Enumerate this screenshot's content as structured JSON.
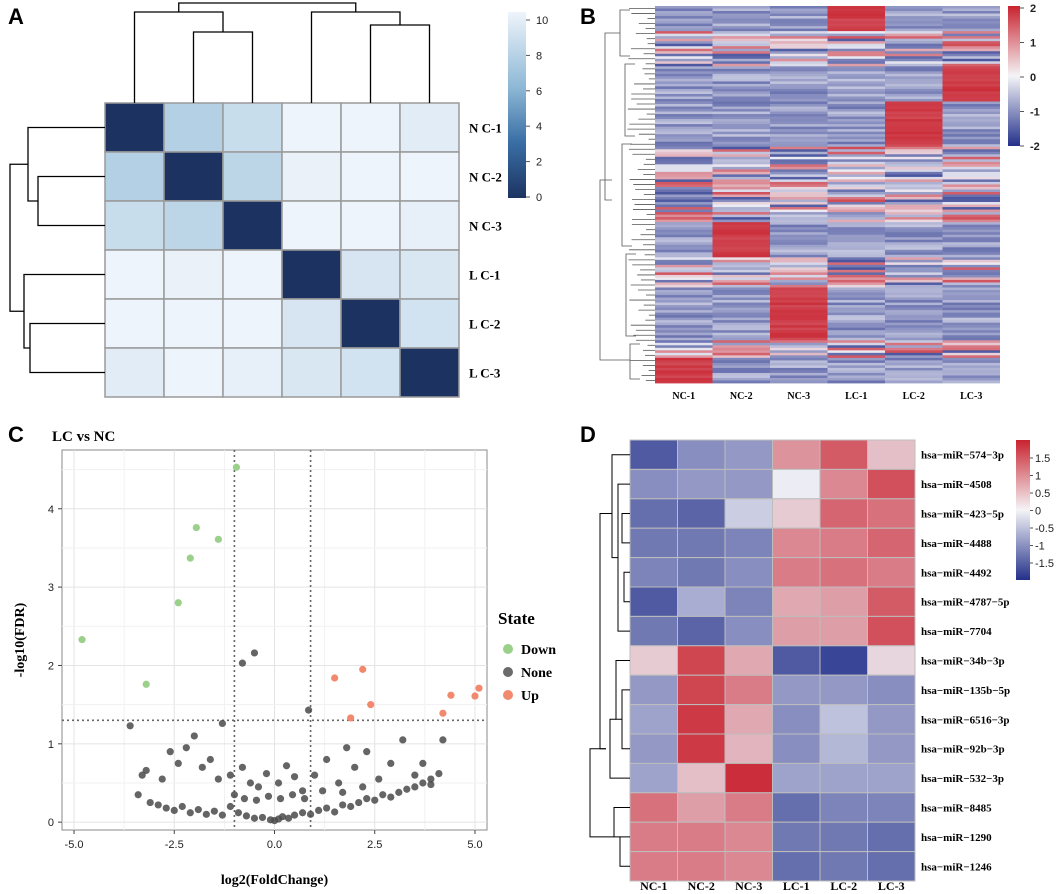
{
  "panels": {
    "a": "A",
    "b": "B",
    "c": "C",
    "d": "D"
  },
  "chart_data": [
    {
      "id": "A",
      "type": "heatmap",
      "title": "",
      "rows": [
        "N C-1",
        "N C-2",
        "N C-3",
        "L C-1",
        "L C-2",
        "L C-3"
      ],
      "values": [
        [
          0,
          7.5,
          8.3,
          10.2,
          10.1,
          9.4
        ],
        [
          7.5,
          0,
          7.8,
          9.8,
          10.2,
          10.0
        ],
        [
          8.3,
          7.8,
          0,
          10.3,
          10.2,
          9.7
        ],
        [
          10.2,
          9.8,
          10.3,
          0,
          8.9,
          9.0
        ],
        [
          10.1,
          10.2,
          10.2,
          8.9,
          0,
          8.7
        ],
        [
          9.4,
          10.0,
          9.7,
          9.0,
          8.7,
          0
        ]
      ],
      "colorbar": {
        "min": 0,
        "max": 10,
        "ticks": [
          "10",
          "8",
          "6",
          "4",
          "2",
          "0"
        ]
      }
    },
    {
      "id": "B",
      "type": "heatmap",
      "columns": [
        "NC-1",
        "NC-2",
        "NC-3",
        "LC-1",
        "LC-2",
        "LC-3"
      ],
      "colorbar": {
        "min": -2,
        "max": 2,
        "ticks": [
          "2",
          "1",
          "0",
          "-1",
          "-2"
        ]
      }
    },
    {
      "id": "C",
      "type": "scatter",
      "title": "LC vs  NC",
      "xlabel": "log2(FoldChange)",
      "ylabel": "-log10(FDR)",
      "xlim": [
        -5.3,
        5.3
      ],
      "ylim": [
        -0.1,
        4.75
      ],
      "xticks": [
        "-5.0",
        "-2.5",
        "0.0",
        "2.5",
        "5.0"
      ],
      "yticks": [
        "0",
        "1",
        "2",
        "3",
        "4"
      ],
      "vlines": [
        -1,
        0.9
      ],
      "hline": 1.3,
      "legend_title": "State",
      "legend": [
        {
          "label": "Down",
          "color": "#9bd08a"
        },
        {
          "label": "None",
          "color": "#6b6b6b"
        },
        {
          "label": "Up",
          "color": "#f2896f"
        }
      ],
      "series": [
        {
          "name": "Down",
          "points": [
            [
              -4.8,
              2.33
            ],
            [
              -3.2,
              1.76
            ],
            [
              -2.4,
              2.8
            ],
            [
              -2.1,
              3.37
            ],
            [
              -1.95,
              3.76
            ],
            [
              -1.4,
              3.61
            ],
            [
              -0.95,
              4.53
            ]
          ]
        },
        {
          "name": "Up",
          "points": [
            [
              1.5,
              1.84
            ],
            [
              1.9,
              1.33
            ],
            [
              2.2,
              1.95
            ],
            [
              2.4,
              1.5
            ],
            [
              4.2,
              1.39
            ],
            [
              4.4,
              1.62
            ],
            [
              5.0,
              1.61
            ],
            [
              5.1,
              1.71
            ]
          ]
        },
        {
          "name": "None",
          "points": [
            [
              -3.6,
              1.23
            ],
            [
              -1.3,
              1.26
            ],
            [
              -0.8,
              2.03
            ],
            [
              -0.5,
              2.16
            ],
            [
              0.85,
              1.43
            ],
            [
              4.2,
              1.05
            ],
            [
              -3.3,
              0.6
            ],
            [
              -3.2,
              0.66
            ],
            [
              -2.8,
              0.55
            ],
            [
              -2.6,
              0.9
            ],
            [
              -2.4,
              0.75
            ],
            [
              -2.2,
              0.95
            ],
            [
              -2.0,
              1.1
            ],
            [
              -1.8,
              0.7
            ],
            [
              -1.6,
              0.8
            ],
            [
              -1.4,
              0.55
            ],
            [
              -1.1,
              0.6
            ],
            [
              -0.8,
              0.7
            ],
            [
              -0.6,
              0.5
            ],
            [
              -0.4,
              0.45
            ],
            [
              -0.2,
              0.62
            ],
            [
              0.1,
              0.5
            ],
            [
              0.3,
              0.72
            ],
            [
              0.5,
              0.58
            ],
            [
              0.7,
              0.4
            ],
            [
              1.0,
              0.6
            ],
            [
              1.3,
              0.8
            ],
            [
              1.6,
              0.5
            ],
            [
              1.8,
              0.95
            ],
            [
              2.0,
              0.7
            ],
            [
              2.3,
              0.9
            ],
            [
              2.6,
              0.55
            ],
            [
              2.9,
              0.75
            ],
            [
              3.2,
              1.05
            ],
            [
              3.5,
              0.6
            ],
            [
              3.7,
              0.75
            ],
            [
              3.9,
              0.55
            ],
            [
              4.1,
              0.62
            ],
            [
              -3.4,
              0.35
            ],
            [
              -3.1,
              0.25
            ],
            [
              -2.9,
              0.22
            ],
            [
              -2.7,
              0.18
            ],
            [
              -2.5,
              0.15
            ],
            [
              -2.3,
              0.2
            ],
            [
              -2.1,
              0.12
            ],
            [
              -1.9,
              0.16
            ],
            [
              -1.7,
              0.1
            ],
            [
              -1.5,
              0.14
            ],
            [
              -1.3,
              0.09
            ],
            [
              -1.1,
              0.2
            ],
            [
              -0.9,
              0.12
            ],
            [
              -0.7,
              0.08
            ],
            [
              -0.5,
              0.05
            ],
            [
              -0.3,
              0.06
            ],
            [
              -0.1,
              0.03
            ],
            [
              0.0,
              0.02
            ],
            [
              0.1,
              0.04
            ],
            [
              0.2,
              0.07
            ],
            [
              0.35,
              0.05
            ],
            [
              0.5,
              0.09
            ],
            [
              0.7,
              0.12
            ],
            [
              0.9,
              0.1
            ],
            [
              1.1,
              0.15
            ],
            [
              1.3,
              0.18
            ],
            [
              1.5,
              0.13
            ],
            [
              1.7,
              0.22
            ],
            [
              1.9,
              0.2
            ],
            [
              2.1,
              0.25
            ],
            [
              2.3,
              0.3
            ],
            [
              2.5,
              0.28
            ],
            [
              2.7,
              0.35
            ],
            [
              2.9,
              0.32
            ],
            [
              3.1,
              0.38
            ],
            [
              3.3,
              0.42
            ],
            [
              3.5,
              0.45
            ],
            [
              3.7,
              0.5
            ],
            [
              3.9,
              0.48
            ],
            [
              -1.0,
              0.35
            ],
            [
              -0.75,
              0.3
            ],
            [
              -0.45,
              0.28
            ],
            [
              -0.15,
              0.33
            ],
            [
              0.15,
              0.3
            ],
            [
              0.45,
              0.35
            ],
            [
              0.75,
              0.3
            ],
            [
              1.2,
              0.4
            ],
            [
              1.7,
              0.38
            ],
            [
              2.2,
              0.45
            ]
          ]
        }
      ]
    },
    {
      "id": "D",
      "type": "heatmap",
      "columns": [
        "NC-1",
        "NC-2",
        "NC-3",
        "LC-1",
        "LC-2",
        "LC-3"
      ],
      "rows": [
        "hsa−miR−574−3p",
        "hsa−miR−4508",
        "hsa−miR−423−5p",
        "hsa−miR−4488",
        "hsa−miR−4492",
        "hsa−miR−4787−5p",
        "hsa−miR−7704",
        "hsa−miR−34b−3p",
        "hsa−miR−135b−5p",
        "hsa−miR−6516−3p",
        "hsa−miR−92b−3p",
        "hsa−miR−532−3p",
        "hsa−miR−8485",
        "hsa−miR−1290",
        "hsa−miR−1246"
      ],
      "values": [
        [
          -1.4,
          -0.9,
          -0.8,
          0.8,
          1.3,
          0.4
        ],
        [
          -0.9,
          -0.8,
          -0.8,
          0.0,
          0.9,
          1.4
        ],
        [
          -1.2,
          -1.3,
          -0.3,
          0.3,
          1.2,
          1.1
        ],
        [
          -1.1,
          -1.1,
          -1.0,
          0.9,
          1.0,
          1.2
        ],
        [
          -1.0,
          -1.1,
          -0.9,
          1.0,
          1.1,
          1.0
        ],
        [
          -1.4,
          -0.6,
          -1.0,
          0.6,
          0.7,
          1.3
        ],
        [
          -1.1,
          -1.3,
          -0.9,
          0.7,
          0.7,
          1.4
        ],
        [
          0.3,
          1.5,
          0.6,
          -1.4,
          -1.6,
          0.2
        ],
        [
          -0.8,
          1.5,
          1.0,
          -0.8,
          -0.8,
          -0.9
        ],
        [
          -0.7,
          1.6,
          0.6,
          -0.9,
          -0.4,
          -0.8
        ],
        [
          -0.8,
          1.6,
          0.5,
          -0.9,
          -0.5,
          -0.8
        ],
        [
          -0.7,
          0.4,
          1.7,
          -0.7,
          -0.7,
          -0.7
        ],
        [
          1.1,
          0.7,
          1.0,
          -1.2,
          -1.0,
          -1.0
        ],
        [
          1.0,
          1.0,
          0.9,
          -1.1,
          -1.1,
          -1.2
        ],
        [
          1.0,
          1.0,
          0.9,
          -1.2,
          -1.1,
          -1.2
        ]
      ],
      "colorbar": {
        "min": -1.8,
        "max": 1.8,
        "ticks": [
          "1.5",
          "1",
          "0.5",
          "0",
          "-0.5",
          "-1",
          "-1.5"
        ]
      }
    }
  ]
}
